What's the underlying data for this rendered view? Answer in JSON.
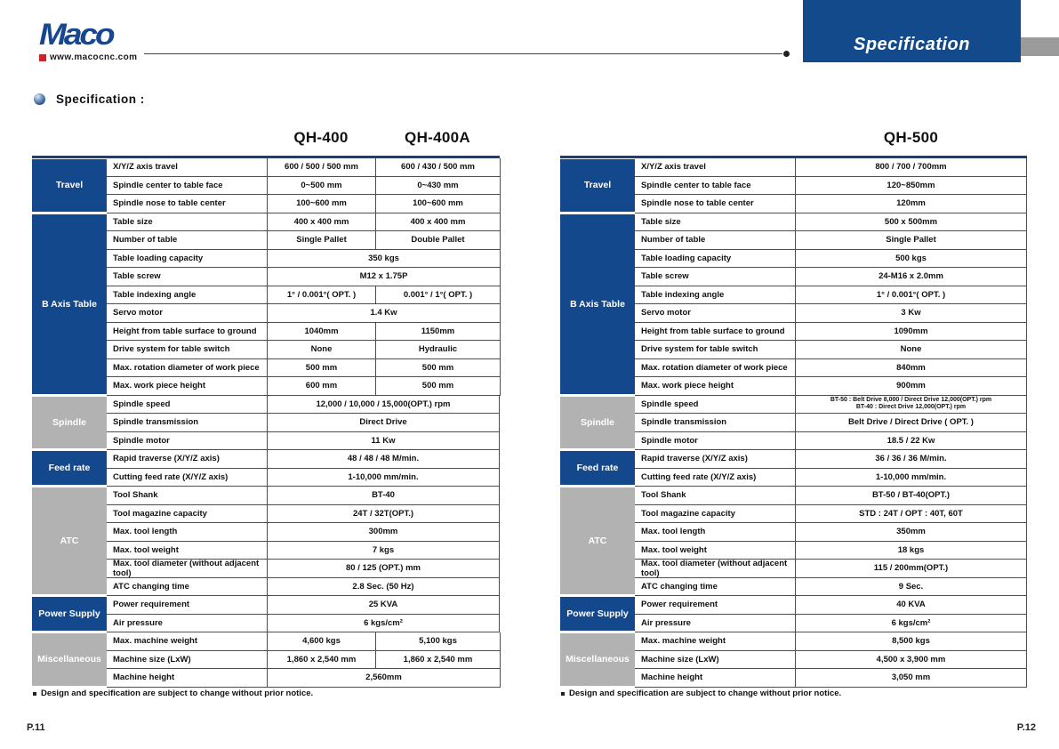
{
  "header": {
    "logo_text": "Maco",
    "logo_url": "www.macocnc.com",
    "banner_title": "Specification"
  },
  "section_heading": "Specification :",
  "footnote": "Design and specification are subject to change without prior notice.",
  "page_left": "P.11",
  "page_right": "P.12",
  "colors": {
    "navy": "#14488c",
    "gray": "#b2b2b2",
    "red": "#d1232a"
  },
  "left_table": {
    "models": [
      "QH-400",
      "QH-400A"
    ],
    "sections": [
      {
        "label": "Travel",
        "color": "blue",
        "rows": [
          {
            "label": "X/Y/Z axis travel",
            "values": [
              "600 / 500 / 500 mm",
              "600 / 430 / 500 mm"
            ]
          },
          {
            "label": "Spindle center to table face",
            "values": [
              "0~500 mm",
              "0~430 mm"
            ]
          },
          {
            "label": "Spindle nose to table center",
            "values": [
              "100~600 mm",
              "100~600 mm"
            ]
          }
        ]
      },
      {
        "label": "B Axis Table",
        "color": "blue",
        "rows": [
          {
            "label": "Table size",
            "values": [
              "400 x 400 mm",
              "400 x 400 mm"
            ]
          },
          {
            "label": "Number of table",
            "values": [
              "Single Pallet",
              "Double Pallet"
            ]
          },
          {
            "label": "Table loading capacity",
            "values": [
              "350 kgs"
            ]
          },
          {
            "label": "Table screw",
            "values": [
              "M12 x 1.75P"
            ]
          },
          {
            "label": "Table indexing angle",
            "values": [
              "1° / 0.001°( OPT. )",
              "0.001° / 1°( OPT. )"
            ]
          },
          {
            "label": "Servo motor",
            "values": [
              "1.4 Kw"
            ]
          },
          {
            "label": "Height from table surface to ground",
            "values": [
              "1040mm",
              "1150mm"
            ]
          },
          {
            "label": "Drive system for table switch",
            "values": [
              "None",
              "Hydraulic"
            ]
          },
          {
            "label": "Max. rotation diameter of work piece",
            "values": [
              "500 mm",
              "500 mm"
            ]
          },
          {
            "label": "Max. work piece height",
            "values": [
              "600 mm",
              "500 mm"
            ]
          }
        ]
      },
      {
        "label": "Spindle",
        "color": "gray",
        "rows": [
          {
            "label": "Spindle speed",
            "values": [
              "12,000 / 10,000 / 15,000(OPT.) rpm"
            ]
          },
          {
            "label": "Spindle transmission",
            "values": [
              "Direct Drive"
            ]
          },
          {
            "label": "Spindle motor",
            "values": [
              "11 Kw"
            ]
          }
        ]
      },
      {
        "label": "Feed rate",
        "color": "blue",
        "rows": [
          {
            "label": "Rapid traverse (X/Y/Z axis)",
            "values": [
              "48 / 48 / 48 M/min."
            ]
          },
          {
            "label": "Cutting feed rate (X/Y/Z axis)",
            "values": [
              "1-10,000 mm/min."
            ]
          }
        ]
      },
      {
        "label": "ATC",
        "color": "gray",
        "rows": [
          {
            "label": "Tool Shank",
            "values": [
              "BT-40"
            ]
          },
          {
            "label": "Tool magazine capacity",
            "values": [
              "24T / 32T(OPT.)"
            ]
          },
          {
            "label": "Max. tool length",
            "values": [
              "300mm"
            ]
          },
          {
            "label": "Max. tool weight",
            "values": [
              "7 kgs"
            ]
          },
          {
            "label": "Max. tool diameter (without adjacent tool)",
            "values": [
              "80 / 125 (OPT.) mm"
            ]
          },
          {
            "label": "ATC changing time",
            "values": [
              "2.8 Sec. (50 Hz)"
            ]
          }
        ]
      },
      {
        "label": "Power Supply",
        "color": "blue",
        "rows": [
          {
            "label": "Power requirement",
            "values": [
              "25 KVA"
            ]
          },
          {
            "label": "Air pressure",
            "values": [
              "6 kgs/cm²"
            ]
          }
        ]
      },
      {
        "label": "Miscellaneous",
        "color": "gray",
        "rows": [
          {
            "label": "Max. machine weight",
            "values": [
              "4,600 kgs",
              "5,100 kgs"
            ]
          },
          {
            "label": "Machine size (LxW)",
            "values": [
              "1,860 x 2,540 mm",
              "1,860 x 2,540 mm"
            ]
          },
          {
            "label": "Machine height",
            "values": [
              "2,560mm"
            ]
          }
        ]
      }
    ]
  },
  "right_table": {
    "models": [
      "QH-500"
    ],
    "sections": [
      {
        "label": "Travel",
        "color": "blue",
        "rows": [
          {
            "label": "X/Y/Z axis travel",
            "values": [
              "800 / 700 / 700mm"
            ]
          },
          {
            "label": "Spindle center to table face",
            "values": [
              "120~850mm"
            ]
          },
          {
            "label": "Spindle nose to table center",
            "values": [
              "120mm"
            ]
          }
        ]
      },
      {
        "label": "B Axis Table",
        "color": "blue",
        "rows": [
          {
            "label": "Table size",
            "values": [
              "500 x 500mm"
            ]
          },
          {
            "label": "Number of table",
            "values": [
              "Single Pallet"
            ]
          },
          {
            "label": "Table loading capacity",
            "values": [
              "500 kgs"
            ]
          },
          {
            "label": "Table screw",
            "values": [
              "24-M16 x 2.0mm"
            ]
          },
          {
            "label": "Table indexing angle",
            "values": [
              "1° / 0.001°( OPT. )"
            ]
          },
          {
            "label": "Servo motor",
            "values": [
              "3 Kw"
            ]
          },
          {
            "label": "Height from table surface to ground",
            "values": [
              "1090mm"
            ]
          },
          {
            "label": "Drive system for table switch",
            "values": [
              "None"
            ]
          },
          {
            "label": "Max. rotation diameter of work piece",
            "values": [
              "840mm"
            ]
          },
          {
            "label": "Max. work piece height",
            "values": [
              "900mm"
            ]
          }
        ]
      },
      {
        "label": "Spindle",
        "color": "gray",
        "rows": [
          {
            "label": "Spindle speed",
            "values": [
              "BT-50 : Belt Drive 8,000 / Direct Drive 12,000(OPT.) rpm\nBT-40 : Direct Drive 12,000(OPT.) rpm"
            ]
          },
          {
            "label": "Spindle transmission",
            "values": [
              "Belt Drive / Direct Drive ( OPT. )"
            ]
          },
          {
            "label": "Spindle motor",
            "values": [
              "18.5 / 22 Kw"
            ]
          }
        ]
      },
      {
        "label": "Feed rate",
        "color": "blue",
        "rows": [
          {
            "label": "Rapid traverse (X/Y/Z axis)",
            "values": [
              "36 / 36 / 36 M/min."
            ]
          },
          {
            "label": "Cutting feed rate (X/Y/Z axis)",
            "values": [
              "1-10,000 mm/min."
            ]
          }
        ]
      },
      {
        "label": "ATC",
        "color": "gray",
        "rows": [
          {
            "label": "Tool Shank",
            "values": [
              "BT-50 / BT-40(OPT.)"
            ]
          },
          {
            "label": "Tool magazine capacity",
            "values": [
              "STD : 24T / OPT : 40T, 60T"
            ]
          },
          {
            "label": "Max. tool length",
            "values": [
              "350mm"
            ]
          },
          {
            "label": "Max. tool weight",
            "values": [
              "18 kgs"
            ]
          },
          {
            "label": "Max. tool diameter (without adjacent tool)",
            "values": [
              "115 / 200mm(OPT.)"
            ]
          },
          {
            "label": "ATC changing time",
            "values": [
              "9 Sec."
            ]
          }
        ]
      },
      {
        "label": "Power Supply",
        "color": "blue",
        "rows": [
          {
            "label": "Power requirement",
            "values": [
              "40 KVA"
            ]
          },
          {
            "label": "Air pressure",
            "values": [
              "6 kgs/cm²"
            ]
          }
        ]
      },
      {
        "label": "Miscellaneous",
        "color": "gray",
        "rows": [
          {
            "label": "Max. machine weight",
            "values": [
              "8,500 kgs"
            ]
          },
          {
            "label": "Machine size (LxW)",
            "values": [
              "4,500 x 3,900 mm"
            ]
          },
          {
            "label": "Machine height",
            "values": [
              "3,050 mm"
            ]
          }
        ]
      }
    ]
  }
}
